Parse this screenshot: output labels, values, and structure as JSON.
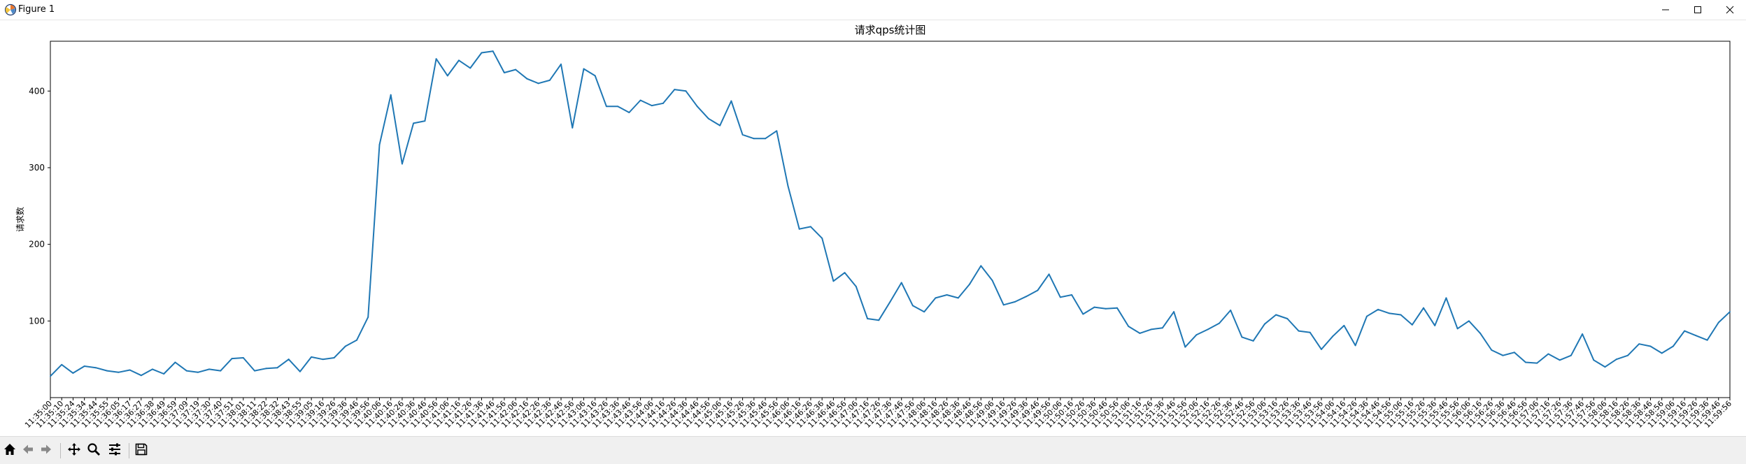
{
  "window": {
    "title": "Figure 1",
    "app_icon": "matplotlib-figure-icon",
    "controls": [
      "minimize-icon",
      "maximize-icon",
      "close-icon"
    ]
  },
  "toolbar": {
    "buttons": [
      "home-icon",
      "back-arrow-icon",
      "forward-arrow-icon",
      "pan-move-icon",
      "zoom-magnifier-icon",
      "configure-subplots-icon",
      "save-disk-icon"
    ]
  },
  "chart_data": {
    "type": "line",
    "title": "请求qps统计图",
    "xlabel": "",
    "ylabel": "请求数",
    "color": "#1f77b4",
    "grid": false,
    "legend": false,
    "ylim": [
      0,
      465
    ],
    "yticks": [
      100,
      200,
      300,
      400
    ],
    "x": [
      "11:35:00",
      "11:35:10",
      "11:35:24",
      "11:35:34",
      "11:35:44",
      "11:35:55",
      "11:36:05",
      "11:36:17",
      "11:36:27",
      "11:36:38",
      "11:36:49",
      "11:36:59",
      "11:37:09",
      "11:37:19",
      "11:37:30",
      "11:37:40",
      "11:37:51",
      "11:38:01",
      "11:38:11",
      "11:38:22",
      "11:38:32",
      "11:38:43",
      "11:38:55",
      "11:39:05",
      "11:39:16",
      "11:39:26",
      "11:39:36",
      "11:39:46",
      "11:39:56",
      "11:40:06",
      "11:40:16",
      "11:40:26",
      "11:40:36",
      "11:40:46",
      "11:40:56",
      "11:41:06",
      "11:41:16",
      "11:41:26",
      "11:41:36",
      "11:41:46",
      "11:41:56",
      "11:42:06",
      "11:42:16",
      "11:42:26",
      "11:42:36",
      "11:42:46",
      "11:42:56",
      "11:43:06",
      "11:43:16",
      "11:43:26",
      "11:43:36",
      "11:43:46",
      "11:43:56",
      "11:44:06",
      "11:44:16",
      "11:44:26",
      "11:44:36",
      "11:44:46",
      "11:44:56",
      "11:45:06",
      "11:45:16",
      "11:45:26",
      "11:45:36",
      "11:45:46",
      "11:45:56",
      "11:46:06",
      "11:46:16",
      "11:46:26",
      "11:46:36",
      "11:46:46",
      "11:46:56",
      "11:47:06",
      "11:47:16",
      "11:47:26",
      "11:47:36",
      "11:47:46",
      "11:47:56",
      "11:48:06",
      "11:48:16",
      "11:48:26",
      "11:48:36",
      "11:48:46",
      "11:48:56",
      "11:49:06",
      "11:49:16",
      "11:49:26",
      "11:49:36",
      "11:49:46",
      "11:49:56",
      "11:50:06",
      "11:50:16",
      "11:50:26",
      "11:50:36",
      "11:50:46",
      "11:50:56",
      "11:51:06",
      "11:51:16",
      "11:51:26",
      "11:51:36",
      "11:51:46",
      "11:51:56",
      "11:52:06",
      "11:52:16",
      "11:52:26",
      "11:52:36",
      "11:52:46",
      "11:52:56",
      "11:53:06",
      "11:53:16",
      "11:53:26",
      "11:53:36",
      "11:53:46",
      "11:53:56",
      "11:54:06",
      "11:54:16",
      "11:54:26",
      "11:54:36",
      "11:54:46",
      "11:54:56",
      "11:55:06",
      "11:55:16",
      "11:55:26",
      "11:55:36",
      "11:55:46",
      "11:55:56",
      "11:56:06",
      "11:56:16",
      "11:56:26",
      "11:56:36",
      "11:56:46",
      "11:56:56",
      "11:57:06",
      "11:57:16",
      "11:57:26",
      "11:57:36",
      "11:57:46",
      "11:57:56",
      "11:58:06",
      "11:58:16",
      "11:58:26",
      "11:58:36",
      "11:58:46",
      "11:58:56",
      "11:59:06",
      "11:59:16",
      "11:59:26",
      "11:59:36",
      "11:59:46",
      "11:59:56"
    ],
    "values": [
      28,
      43,
      32,
      41,
      39,
      35,
      33,
      36,
      29,
      37,
      31,
      46,
      35,
      33,
      37,
      35,
      51,
      52,
      35,
      38,
      39,
      50,
      34,
      53,
      50,
      52,
      67,
      75,
      105,
      330,
      395,
      305,
      358,
      361,
      442,
      420,
      440,
      430,
      450,
      452,
      424,
      428,
      416,
      410,
      414,
      435,
      352,
      429,
      420,
      380,
      380,
      372,
      388,
      381,
      384,
      402,
      400,
      380,
      364,
      355,
      387,
      343,
      338,
      338,
      348,
      276,
      220,
      223,
      208,
      152,
      163,
      145,
      103,
      101,
      125,
      150,
      120,
      112,
      130,
      134,
      130,
      148,
      172,
      153,
      121,
      125,
      132,
      140,
      161,
      131,
      134,
      109,
      118,
      116,
      117,
      93,
      84,
      89,
      91,
      112,
      66,
      82,
      89,
      97,
      114,
      79,
      74,
      96,
      108,
      103,
      87,
      85,
      63,
      80,
      94,
      68,
      106,
      115,
      110,
      108,
      95,
      117,
      94,
      130,
      90,
      100,
      84,
      62,
      55,
      59,
      46,
      45,
      57,
      49,
      55,
      83,
      49,
      40,
      50,
      55,
      70,
      67,
      58,
      67,
      87,
      81,
      75,
      98,
      112
    ]
  }
}
